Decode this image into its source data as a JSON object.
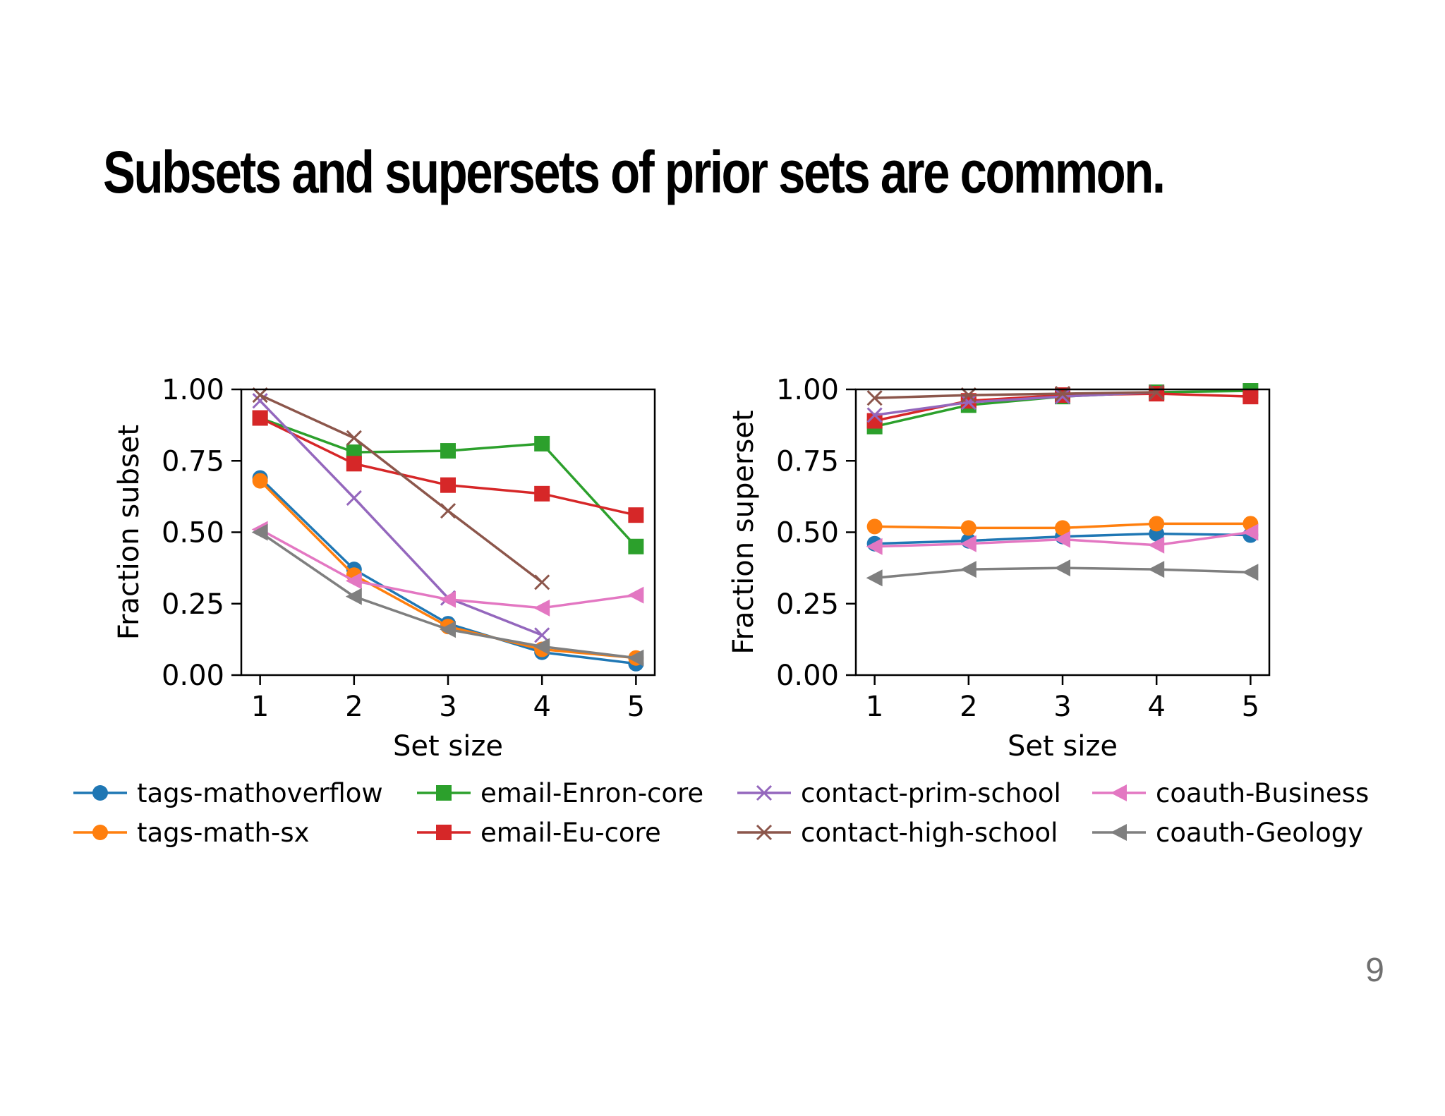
{
  "title": "Subsets and supersets of prior sets are common.",
  "page_number": "9",
  "chart_data": [
    {
      "type": "line",
      "xlabel": "Set size",
      "ylabel": "Fraction subset",
      "xlim": [
        0.8,
        5.2
      ],
      "ylim": [
        0.0,
        1.0
      ],
      "x": [
        1,
        2,
        3,
        4,
        5
      ],
      "xticks": [
        "1",
        "2",
        "3",
        "4",
        "5"
      ],
      "yticks": [
        "0.00",
        "0.25",
        "0.50",
        "0.75",
        "1.00"
      ],
      "series": [
        {
          "name": "tags-mathoverflow",
          "values": [
            0.69,
            0.37,
            0.18,
            0.08,
            0.04
          ]
        },
        {
          "name": "tags-math-sx",
          "values": [
            0.68,
            0.35,
            0.17,
            0.09,
            0.06
          ]
        },
        {
          "name": "email-Enron-core",
          "values": [
            0.9,
            0.78,
            0.785,
            0.81,
            0.45
          ]
        },
        {
          "name": "email-Eu-core",
          "values": [
            0.9,
            0.74,
            0.665,
            0.635,
            0.56
          ]
        },
        {
          "name": "contact-prim-school",
          "values": [
            0.96,
            0.62,
            0.27,
            0.14,
            null
          ]
        },
        {
          "name": "contact-high-school",
          "values": [
            0.98,
            0.83,
            0.575,
            0.325,
            null
          ]
        },
        {
          "name": "coauth-Business",
          "values": [
            0.51,
            0.33,
            0.265,
            0.235,
            0.28
          ]
        },
        {
          "name": "coauth-Geology",
          "values": [
            0.5,
            0.275,
            0.16,
            0.1,
            0.06
          ]
        }
      ]
    },
    {
      "type": "line",
      "xlabel": "Set size",
      "ylabel": "Fraction superset",
      "xlim": [
        0.8,
        5.2
      ],
      "ylim": [
        0.0,
        1.0
      ],
      "x": [
        1,
        2,
        3,
        4,
        5
      ],
      "xticks": [
        "1",
        "2",
        "3",
        "4",
        "5"
      ],
      "yticks": [
        "0.00",
        "0.25",
        "0.50",
        "0.75",
        "1.00"
      ],
      "series": [
        {
          "name": "tags-mathoverflow",
          "values": [
            0.46,
            0.47,
            0.485,
            0.495,
            0.49
          ]
        },
        {
          "name": "tags-math-sx",
          "values": [
            0.52,
            0.515,
            0.515,
            0.53,
            0.53
          ]
        },
        {
          "name": "email-Enron-core",
          "values": [
            0.87,
            0.945,
            0.975,
            0.99,
            0.995
          ]
        },
        {
          "name": "email-Eu-core",
          "values": [
            0.89,
            0.96,
            0.98,
            0.985,
            0.975
          ]
        },
        {
          "name": "contact-prim-school",
          "values": [
            0.91,
            0.955,
            0.975,
            0.99,
            null
          ]
        },
        {
          "name": "contact-high-school",
          "values": [
            0.97,
            0.98,
            0.985,
            0.99,
            null
          ]
        },
        {
          "name": "coauth-Business",
          "values": [
            0.45,
            0.46,
            0.475,
            0.455,
            0.5
          ]
        },
        {
          "name": "coauth-Geology",
          "values": [
            0.34,
            0.37,
            0.375,
            0.37,
            0.36
          ]
        }
      ]
    }
  ],
  "legend": [
    {
      "name": "tags-mathoverflow",
      "color": "#1f77b4",
      "marker": "circle"
    },
    {
      "name": "email-Enron-core",
      "color": "#2ca02c",
      "marker": "square"
    },
    {
      "name": "contact-prim-school",
      "color": "#9467bd",
      "marker": "x"
    },
    {
      "name": "coauth-Business",
      "color": "#e377c2",
      "marker": "triangle-left"
    },
    {
      "name": "tags-math-sx",
      "color": "#ff7f0e",
      "marker": "circle"
    },
    {
      "name": "email-Eu-core",
      "color": "#d62728",
      "marker": "square"
    },
    {
      "name": "contact-high-school",
      "color": "#8c564b",
      "marker": "x"
    },
    {
      "name": "coauth-Geology",
      "color": "#7f7f7f",
      "marker": "triangle-left"
    }
  ],
  "series_styles": {
    "tags-mathoverflow": {
      "color": "#1f77b4",
      "marker": "circle"
    },
    "tags-math-sx": {
      "color": "#ff7f0e",
      "marker": "circle"
    },
    "email-Enron-core": {
      "color": "#2ca02c",
      "marker": "square"
    },
    "email-Eu-core": {
      "color": "#d62728",
      "marker": "square"
    },
    "contact-prim-school": {
      "color": "#9467bd",
      "marker": "x"
    },
    "contact-high-school": {
      "color": "#8c564b",
      "marker": "x"
    },
    "coauth-Business": {
      "color": "#e377c2",
      "marker": "triangle-left"
    },
    "coauth-Geology": {
      "color": "#7f7f7f",
      "marker": "triangle-left"
    }
  }
}
